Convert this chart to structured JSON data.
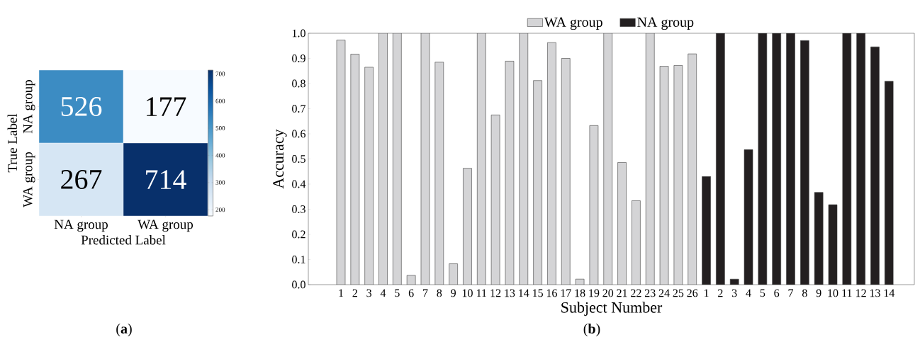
{
  "chart_data": [
    {
      "type": "heatmap",
      "xlabel": "Predicted Label",
      "ylabel": "True Label",
      "categories": [
        "NA group",
        "WA group"
      ],
      "y_categories": [
        "NA group",
        "WA group"
      ],
      "cells": [
        [
          526,
          177
        ],
        [
          267,
          714
        ]
      ],
      "clim": [
        177,
        714
      ],
      "cticks": [
        200,
        300,
        400,
        500,
        600,
        700
      ],
      "data_labels": true,
      "annotations": [
        "(**a**)"
      ]
    },
    {
      "type": "bar",
      "xlabel": "Subject Number",
      "ylabel": "Accuracy",
      "categories": [
        "1",
        "2",
        "3",
        "4",
        "5",
        "6",
        "7",
        "8",
        "9",
        "10",
        "11",
        "12",
        "13",
        "14",
        "15",
        "16",
        "17",
        "18",
        "19",
        "20",
        "21",
        "22",
        "23",
        "24",
        "25",
        "26",
        "1",
        "2",
        "3",
        "4",
        "5",
        "6",
        "7",
        "8",
        "9",
        "10",
        "11",
        "12",
        "13",
        "14"
      ],
      "series": [
        {
          "name": "WA group",
          "color": "#d4d4d6",
          "values": [
            0.973,
            0.917,
            0.865,
            1,
            1,
            0.037,
            1,
            0.885,
            0.083,
            0.463,
            1,
            0.675,
            0.889,
            1,
            0.812,
            0.963,
            0.9,
            0.022,
            0.633,
            1,
            0.486,
            0.334,
            1,
            0.869,
            0.872,
            0.918,
            null,
            null,
            null,
            null,
            null,
            null,
            null,
            null,
            null,
            null,
            null,
            null,
            null,
            null
          ]
        },
        {
          "name": "NA group",
          "color": "#231f20",
          "values": [
            null,
            null,
            null,
            null,
            null,
            null,
            null,
            null,
            null,
            null,
            null,
            null,
            null,
            null,
            null,
            null,
            null,
            null,
            null,
            null,
            null,
            null,
            null,
            null,
            null,
            null,
            0.43,
            1,
            0.022,
            0.537,
            1,
            1,
            1,
            0.971,
            0.367,
            0.318,
            1,
            1,
            0.946,
            0.809
          ]
        }
      ],
      "ylim": [
        0,
        1
      ],
      "yticks": [
        {
          "value": 0,
          "label": "0.0"
        },
        0.1,
        0.2,
        0.3,
        0.4,
        0.5,
        0.6,
        0.7,
        0.8,
        0.9,
        {
          "value": 1,
          "label": "1.0"
        }
      ],
      "legend": "top",
      "annotations": [
        "(**b**)"
      ]
    }
  ]
}
